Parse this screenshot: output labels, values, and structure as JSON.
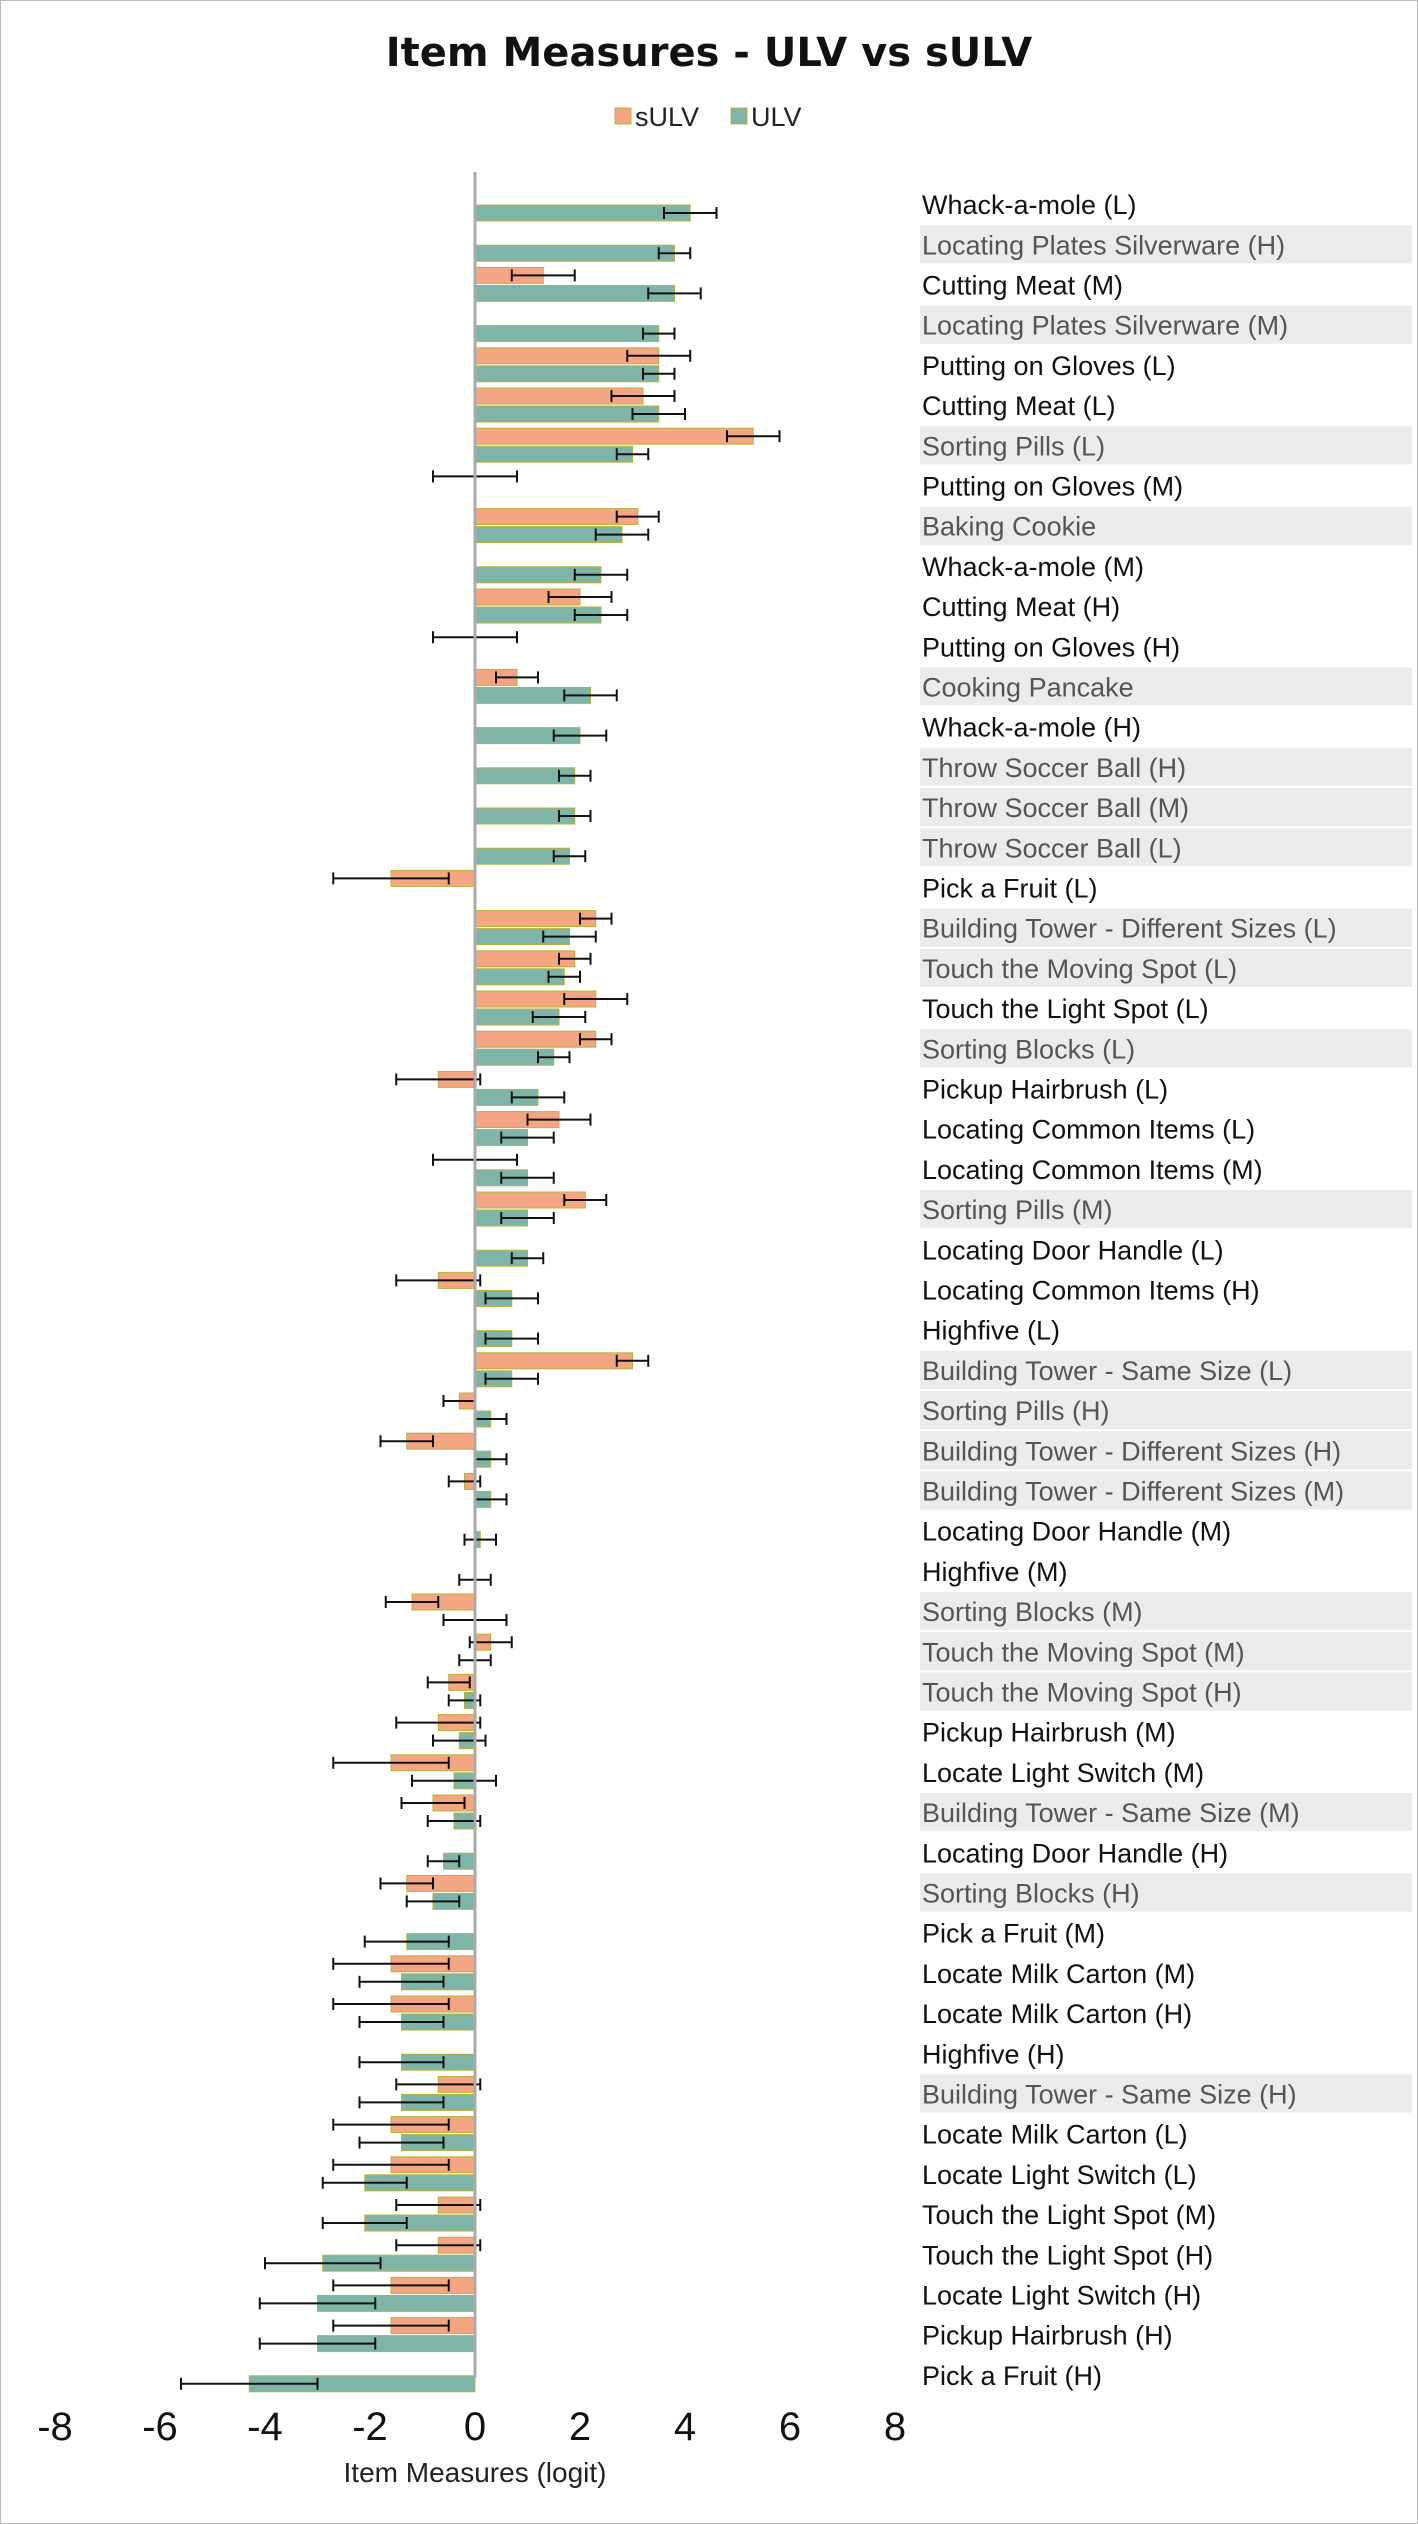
{
  "chart_data": {
    "type": "bar",
    "orientation": "horizontal",
    "title": "Item Measures - ULV vs sULV",
    "xlabel": "Item Measures (logit)",
    "ylabel": "",
    "xlim": [
      -8,
      8
    ],
    "xticks": [
      "-8",
      "-6",
      "-4",
      "-2",
      "0",
      "2",
      "4",
      "6",
      "8"
    ],
    "legend": [
      {
        "name": "sULV",
        "color": "#f4a582"
      },
      {
        "name": "ULV",
        "color": "#7fb5a8"
      }
    ],
    "legend_position": "top-center",
    "colors": {
      "sULV": "#f4a582",
      "ULV": "#7fb5a8",
      "bar_edge": "#b7b33a",
      "label_highlight": "#ebebeb",
      "axis": "#aaaaaa"
    },
    "categories": [
      "Whack-a-mole (L)",
      "Locating Plates Silverware (H)",
      "Cutting Meat (M)",
      "Locating Plates Silverware (M)",
      "Putting on Gloves (L)",
      "Cutting Meat (L)",
      "Sorting Pills (L)",
      "Putting on Gloves (M)",
      "Baking Cookie",
      "Whack-a-mole (M)",
      "Cutting Meat (H)",
      "Putting on Gloves (H)",
      "Cooking Pancake",
      "Whack-a-mole (H)",
      "Throw Soccer Ball (H)",
      "Throw Soccer Ball (M)",
      "Throw Soccer Ball (L)",
      "Pick a Fruit (L)",
      "Building Tower - Different Sizes (L)",
      "Touch the Moving Spot (L)",
      "Touch the Light Spot (L)",
      "Sorting Blocks (L)",
      "Pickup Hairbrush (L)",
      "Locating Common Items (L)",
      "Locating Common Items (M)",
      "Sorting Pills (M)",
      "Locating Door Handle (L)",
      "Locating Common Items (H)",
      "Highfive (L)",
      "Building Tower - Same Size (L)",
      "Sorting Pills (H)",
      "Building Tower - Different Sizes (H)",
      "Building Tower - Different Sizes (M)",
      "Locating Door Handle (M)",
      "Highfive (M)",
      "Sorting Blocks (M)",
      "Touch the Moving Spot (M)",
      "Touch the Moving Spot (H)",
      "Pickup Hairbrush (M)",
      "Locate Light Switch (M)",
      "Building Tower - Same Size (M)",
      "Locating Door Handle (H)",
      "Sorting Blocks (H)",
      "Pick a Fruit (M)",
      "Locate Milk Carton (M)",
      "Locate Milk Carton (H)",
      "Highfive (H)",
      "Building Tower - Same Size (H)",
      "Locate Milk Carton (L)",
      "Locate Light Switch (L)",
      "Touch the Light Spot (M)",
      "Touch the Light Spot (H)",
      "Locate Light Switch (H)",
      "Pickup Hairbrush (H)",
      "Pick a Fruit (H)"
    ],
    "highlighted_categories": [
      1,
      3,
      6,
      8,
      12,
      14,
      15,
      16,
      18,
      19,
      21,
      25,
      29,
      30,
      31,
      32,
      35,
      36,
      37,
      40,
      42,
      47
    ],
    "series": [
      {
        "name": "sULV",
        "values": [
          null,
          null,
          1.3,
          null,
          3.5,
          3.2,
          5.3,
          0.0,
          3.1,
          null,
          2.0,
          0.0,
          0.8,
          null,
          null,
          null,
          null,
          -1.6,
          2.3,
          1.9,
          2.3,
          2.3,
          -0.7,
          1.6,
          0.0,
          2.1,
          null,
          -0.7,
          null,
          3.0,
          -0.3,
          -1.3,
          -0.2,
          null,
          null,
          -1.2,
          0.3,
          -0.5,
          -0.7,
          -1.6,
          -0.8,
          null,
          -1.3,
          null,
          -1.6,
          -1.6,
          null,
          -0.7,
          -1.6,
          -1.6,
          -0.7,
          -0.7,
          -1.6,
          -1.6,
          null
        ],
        "errors": [
          null,
          null,
          0.6,
          null,
          0.6,
          0.6,
          0.5,
          0.8,
          0.4,
          null,
          0.6,
          0.8,
          0.4,
          null,
          null,
          null,
          null,
          1.1,
          0.3,
          0.3,
          0.6,
          0.3,
          0.8,
          0.6,
          0.8,
          0.4,
          null,
          0.8,
          null,
          0.3,
          0.3,
          0.5,
          0.3,
          null,
          null,
          0.5,
          0.4,
          0.4,
          0.8,
          1.1,
          0.6,
          null,
          0.5,
          null,
          1.1,
          1.1,
          null,
          0.8,
          1.1,
          1.1,
          0.8,
          0.8,
          1.1,
          1.1,
          null
        ]
      },
      {
        "name": "ULV",
        "values": [
          4.1,
          3.8,
          3.8,
          3.5,
          3.5,
          3.5,
          3.0,
          null,
          2.8,
          2.4,
          2.4,
          null,
          2.2,
          2.0,
          1.9,
          1.9,
          1.8,
          null,
          1.8,
          1.7,
          1.6,
          1.5,
          1.2,
          1.0,
          1.0,
          1.0,
          1.0,
          0.7,
          0.7,
          0.7,
          0.3,
          0.3,
          0.3,
          0.1,
          0.0,
          0.0,
          0.0,
          -0.2,
          -0.3,
          -0.4,
          -0.4,
          -0.6,
          -0.8,
          -1.3,
          -1.4,
          -1.4,
          -1.4,
          -1.4,
          -1.4,
          -2.1,
          -2.1,
          -2.9,
          -3.0,
          -3.0,
          -4.3
        ],
        "errors": [
          0.5,
          0.3,
          0.5,
          0.3,
          0.3,
          0.5,
          0.3,
          null,
          0.5,
          0.5,
          0.5,
          null,
          0.5,
          0.5,
          0.3,
          0.3,
          0.3,
          null,
          0.5,
          0.3,
          0.5,
          0.3,
          0.5,
          0.5,
          0.5,
          0.5,
          0.3,
          0.5,
          0.5,
          0.5,
          0.3,
          0.3,
          0.3,
          0.3,
          0.3,
          0.6,
          0.3,
          0.3,
          0.5,
          0.8,
          0.5,
          0.3,
          0.5,
          0.8,
          0.8,
          0.8,
          0.8,
          0.8,
          0.8,
          0.8,
          0.8,
          1.1,
          1.1,
          1.1,
          1.3
        ]
      }
    ]
  }
}
